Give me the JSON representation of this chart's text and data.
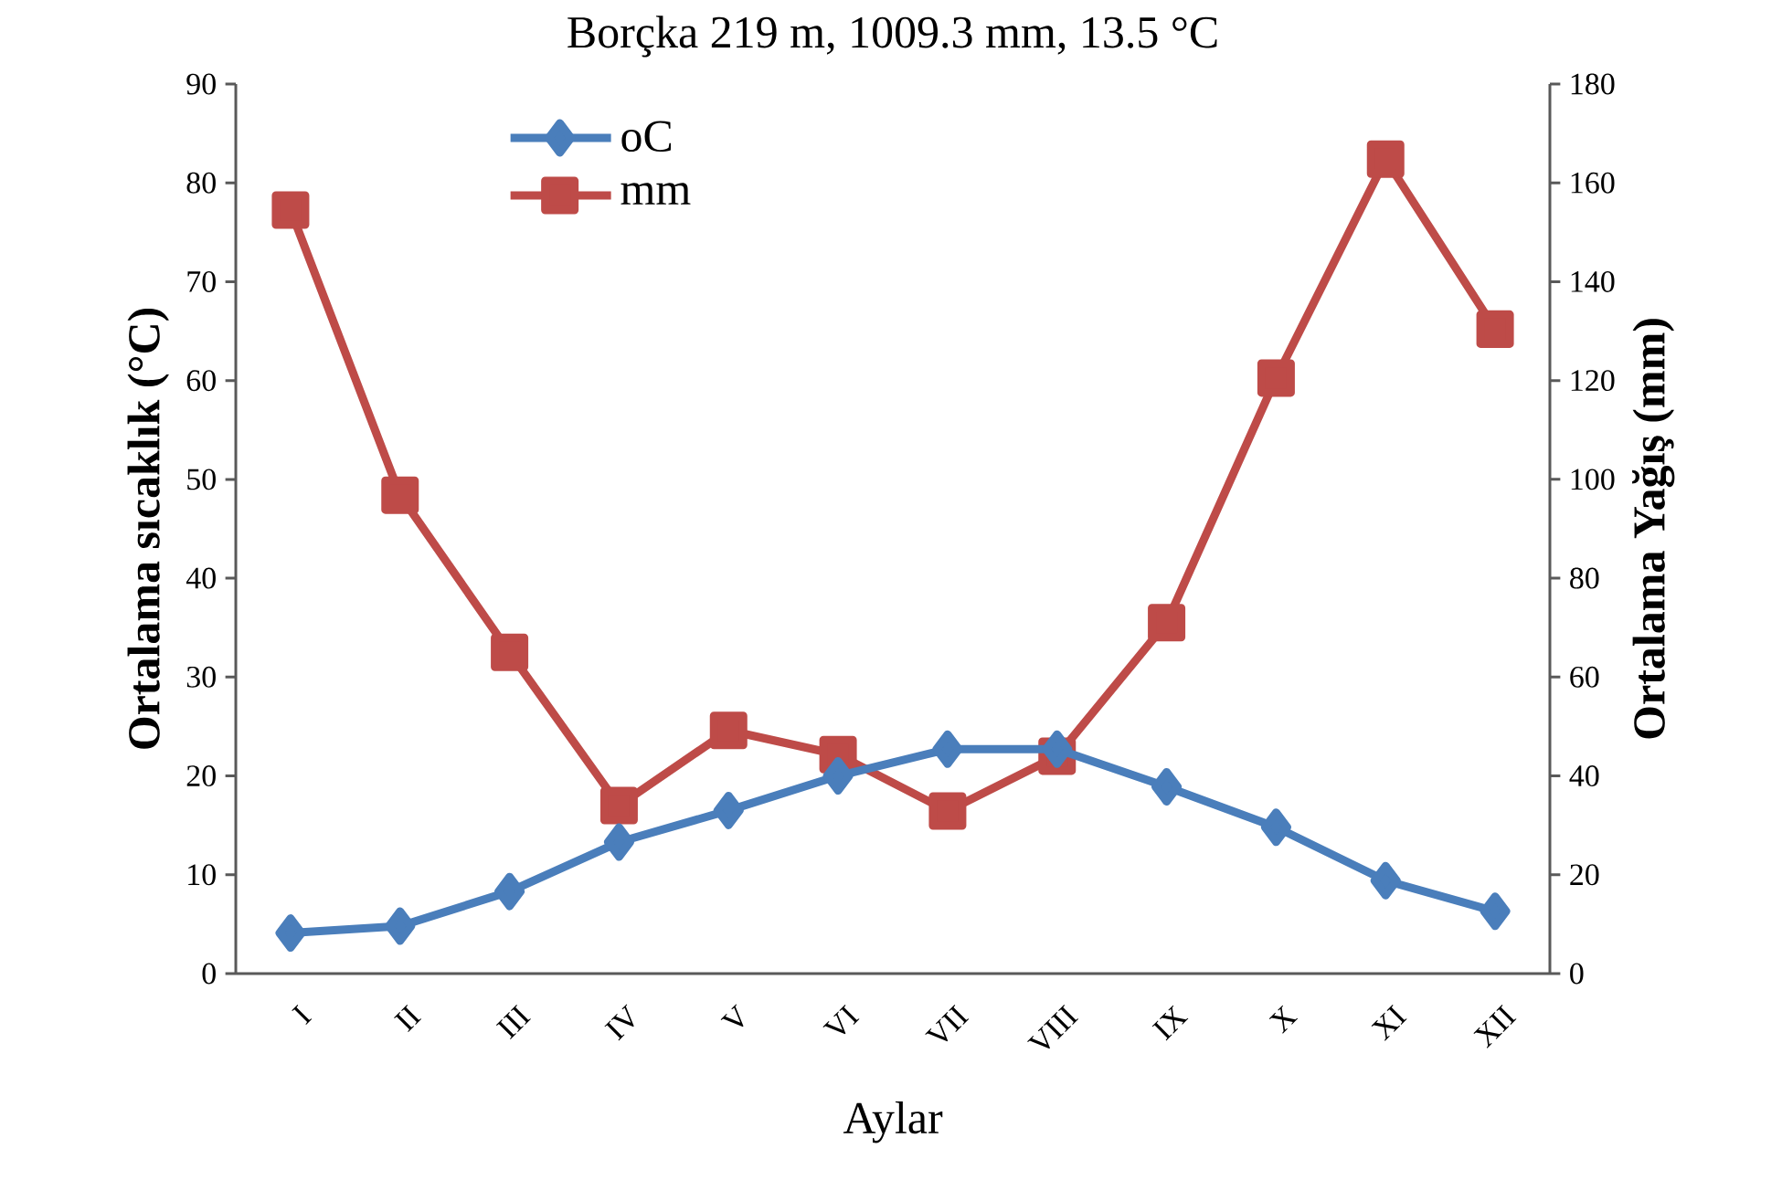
{
  "chart_data": {
    "type": "line",
    "title": "Borçka 219 m,  1009.3 mm,  13.5 °C",
    "xlabel": "Aylar",
    "ylabel": "Ortalama sıcaklık (°C)",
    "y2label": "Ortalama  Yağış (mm)",
    "categories": [
      "I",
      "II",
      "III",
      "IV",
      "V",
      "VI",
      "VII",
      "VIII",
      "IX",
      "X",
      "XI",
      "XII"
    ],
    "series": [
      {
        "name": "oC",
        "color": "#4a7ebb",
        "marker": "diamond",
        "values": [
          4.1,
          4.8,
          8.3,
          13.3,
          16.5,
          20.0,
          22.7,
          22.7,
          18.9,
          14.8,
          9.4,
          6.3
        ]
      },
      {
        "name": "mm",
        "color": "#be4b48",
        "marker": "square",
        "axis": "y2",
        "values": [
          154.5,
          96.8,
          65.0,
          34.0,
          49.2,
          44.3,
          32.9,
          44.0,
          71.0,
          120.5,
          164.8,
          130.4
        ]
      }
    ],
    "ylim": [
      0,
      90
    ],
    "yticks": [
      0,
      10,
      20,
      30,
      40,
      50,
      60,
      70,
      80,
      90
    ],
    "y2lim": [
      0,
      180
    ],
    "y2ticks": [
      0,
      20,
      40,
      60,
      80,
      100,
      120,
      140,
      160,
      180
    ],
    "legend": "top left",
    "grid": false,
    "line_style": "solid"
  }
}
